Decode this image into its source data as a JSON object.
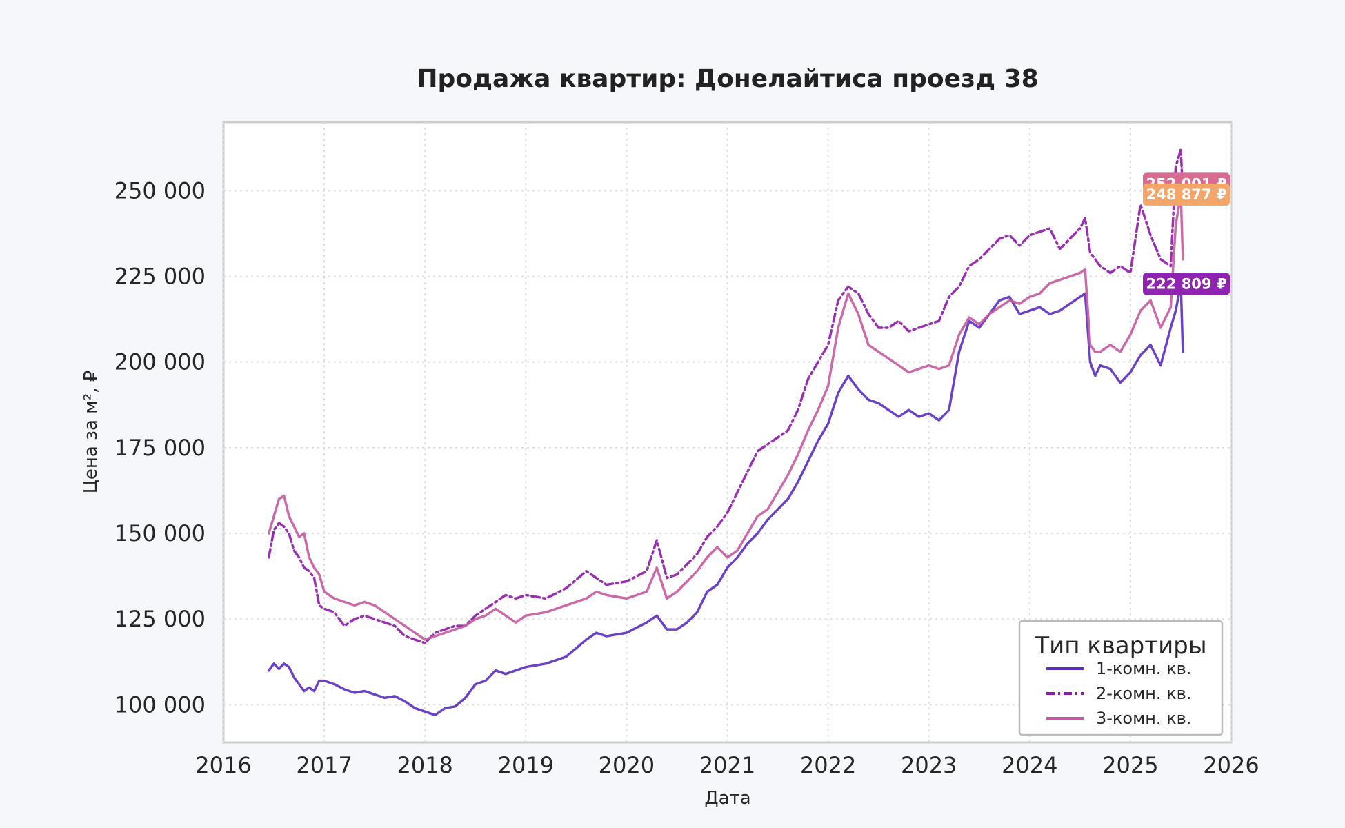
{
  "chart_data": {
    "type": "line",
    "title": "Продажа квартир: Донелайтиса проезд 38",
    "xlabel": "Дата",
    "ylabel": "Цена за м², ₽",
    "xlim": [
      2016.0,
      2026.0
    ],
    "ylim": [
      89000,
      270000
    ],
    "x_ticks": [
      2016,
      2017,
      2018,
      2019,
      2020,
      2021,
      2022,
      2023,
      2024,
      2025,
      2026
    ],
    "x_tick_labels": [
      "2016",
      "2017",
      "2018",
      "2019",
      "2020",
      "2021",
      "2022",
      "2023",
      "2024",
      "2025",
      "2026"
    ],
    "y_ticks": [
      100000,
      125000,
      150000,
      175000,
      200000,
      225000,
      250000
    ],
    "y_tick_labels": [
      "100 000",
      "125 000",
      "150 000",
      "175 000",
      "200 000",
      "225 000",
      "250 000"
    ],
    "grid": true,
    "legend": {
      "title": "Тип квартиры",
      "placement": "lower-right",
      "entries": [
        "1-комн. кв.",
        "2-комн. кв.",
        "3-комн. кв."
      ]
    },
    "series": [
      {
        "name": "1-комн. кв.",
        "color": "#5b2dbf",
        "style": "solid",
        "x": [
          2016.45,
          2016.5,
          2016.55,
          2016.6,
          2016.65,
          2016.7,
          2016.75,
          2016.8,
          2016.85,
          2016.9,
          2016.95,
          2017.0,
          2017.1,
          2017.2,
          2017.3,
          2017.4,
          2017.5,
          2017.6,
          2017.7,
          2017.8,
          2017.9,
          2018.0,
          2018.1,
          2018.2,
          2018.3,
          2018.4,
          2018.5,
          2018.6,
          2018.7,
          2018.8,
          2018.9,
          2019.0,
          2019.2,
          2019.4,
          2019.6,
          2019.7,
          2019.8,
          2020.0,
          2020.2,
          2020.3,
          2020.4,
          2020.5,
          2020.6,
          2020.7,
          2020.8,
          2020.9,
          2021.0,
          2021.1,
          2021.2,
          2021.3,
          2021.4,
          2021.5,
          2021.6,
          2021.7,
          2021.8,
          2021.9,
          2022.0,
          2022.1,
          2022.2,
          2022.3,
          2022.4,
          2022.5,
          2022.6,
          2022.7,
          2022.8,
          2022.9,
          2023.0,
          2023.1,
          2023.2,
          2023.3,
          2023.4,
          2023.5,
          2023.6,
          2023.7,
          2023.8,
          2023.9,
          2024.0,
          2024.1,
          2024.2,
          2024.3,
          2024.4,
          2024.5,
          2024.55,
          2024.6,
          2024.65,
          2024.7,
          2024.8,
          2024.9,
          2025.0,
          2025.1,
          2025.2,
          2025.3,
          2025.4,
          2025.45,
          2025.5,
          2025.52
        ],
        "values": [
          110000,
          112000,
          110500,
          112000,
          111000,
          108000,
          106000,
          104000,
          105000,
          104000,
          107000,
          107000,
          106000,
          104500,
          103500,
          104000,
          103000,
          102000,
          102500,
          101000,
          99000,
          98000,
          97000,
          99000,
          99500,
          102000,
          106000,
          107000,
          110000,
          109000,
          110000,
          111000,
          112000,
          114000,
          119000,
          121000,
          120000,
          121000,
          124000,
          126000,
          122000,
          122000,
          124000,
          127000,
          133000,
          135000,
          140000,
          143000,
          147000,
          150000,
          154000,
          157000,
          160000,
          165000,
          171000,
          177000,
          182000,
          191000,
          196000,
          192000,
          189000,
          188000,
          186000,
          184000,
          186000,
          184000,
          185000,
          183000,
          186000,
          203000,
          212000,
          210000,
          214000,
          218000,
          219000,
          214000,
          215000,
          216000,
          214000,
          215000,
          217000,
          219000,
          220000,
          200000,
          196000,
          199000,
          198000,
          194000,
          197000,
          202000,
          205000,
          199000,
          210000,
          215000,
          222809,
          203000
        ]
      },
      {
        "name": "2-комн. кв.",
        "color": "#8e1aa8",
        "style": "dashdot",
        "x": [
          2016.45,
          2016.5,
          2016.55,
          2016.6,
          2016.65,
          2016.7,
          2016.75,
          2016.8,
          2016.85,
          2016.9,
          2016.95,
          2017.0,
          2017.1,
          2017.2,
          2017.3,
          2017.4,
          2017.5,
          2017.6,
          2017.7,
          2017.8,
          2017.9,
          2018.0,
          2018.1,
          2018.2,
          2018.3,
          2018.4,
          2018.5,
          2018.6,
          2018.7,
          2018.8,
          2018.9,
          2019.0,
          2019.2,
          2019.4,
          2019.6,
          2019.7,
          2019.8,
          2020.0,
          2020.2,
          2020.3,
          2020.4,
          2020.5,
          2020.6,
          2020.7,
          2020.8,
          2020.9,
          2021.0,
          2021.1,
          2021.2,
          2021.3,
          2021.4,
          2021.5,
          2021.6,
          2021.7,
          2021.8,
          2021.9,
          2022.0,
          2022.1,
          2022.2,
          2022.3,
          2022.4,
          2022.5,
          2022.6,
          2022.7,
          2022.8,
          2022.9,
          2023.0,
          2023.1,
          2023.2,
          2023.3,
          2023.4,
          2023.5,
          2023.6,
          2023.7,
          2023.8,
          2023.9,
          2024.0,
          2024.1,
          2024.2,
          2024.3,
          2024.4,
          2024.5,
          2024.55,
          2024.6,
          2024.65,
          2024.7,
          2024.8,
          2024.9,
          2025.0,
          2025.1,
          2025.2,
          2025.3,
          2025.4,
          2025.45,
          2025.5,
          2025.52
        ],
        "values": [
          143000,
          151000,
          153000,
          152000,
          150000,
          145000,
          143000,
          140000,
          139000,
          137000,
          129000,
          128000,
          127000,
          123000,
          125000,
          126000,
          125000,
          124000,
          123000,
          120000,
          119000,
          118000,
          121000,
          122000,
          123000,
          123000,
          126000,
          128000,
          130000,
          132000,
          131000,
          132000,
          131000,
          134000,
          139000,
          137000,
          135000,
          136000,
          139000,
          148000,
          137000,
          138000,
          141000,
          144000,
          149000,
          152000,
          156000,
          162000,
          168000,
          174000,
          176000,
          178000,
          180000,
          186000,
          195000,
          200000,
          205000,
          218000,
          222000,
          220000,
          214000,
          210000,
          210000,
          212000,
          209000,
          210000,
          211000,
          212000,
          219000,
          222000,
          228000,
          230000,
          233000,
          236000,
          237000,
          234000,
          237000,
          238000,
          239000,
          233000,
          236000,
          239000,
          242000,
          232000,
          230000,
          228000,
          226000,
          228000,
          226000,
          246000,
          237000,
          230000,
          228000,
          257000,
          262000,
          249000
        ]
      },
      {
        "name": "3-комн. кв.",
        "color": "#c45aa0",
        "style": "solid",
        "x": [
          2016.45,
          2016.5,
          2016.55,
          2016.6,
          2016.65,
          2016.7,
          2016.75,
          2016.8,
          2016.85,
          2016.9,
          2016.95,
          2017.0,
          2017.1,
          2017.2,
          2017.3,
          2017.4,
          2017.5,
          2017.6,
          2017.7,
          2017.8,
          2017.9,
          2018.0,
          2018.1,
          2018.2,
          2018.3,
          2018.4,
          2018.5,
          2018.6,
          2018.7,
          2018.8,
          2018.9,
          2019.0,
          2019.2,
          2019.4,
          2019.6,
          2019.7,
          2019.8,
          2020.0,
          2020.2,
          2020.3,
          2020.4,
          2020.5,
          2020.6,
          2020.7,
          2020.8,
          2020.9,
          2021.0,
          2021.1,
          2021.2,
          2021.3,
          2021.4,
          2021.5,
          2021.6,
          2021.7,
          2021.8,
          2021.9,
          2022.0,
          2022.1,
          2022.2,
          2022.3,
          2022.4,
          2022.5,
          2022.6,
          2022.7,
          2022.8,
          2022.9,
          2023.0,
          2023.1,
          2023.2,
          2023.3,
          2023.4,
          2023.5,
          2023.6,
          2023.7,
          2023.8,
          2023.9,
          2024.0,
          2024.1,
          2024.2,
          2024.3,
          2024.4,
          2024.5,
          2024.55,
          2024.6,
          2024.65,
          2024.7,
          2024.8,
          2024.9,
          2025.0,
          2025.1,
          2025.2,
          2025.3,
          2025.4,
          2025.45,
          2025.5,
          2025.52
        ],
        "values": [
          150000,
          155000,
          160000,
          161000,
          155000,
          152000,
          149000,
          150000,
          143000,
          140000,
          138000,
          133000,
          131000,
          130000,
          129000,
          130000,
          129000,
          127000,
          125000,
          123000,
          121000,
          119000,
          120000,
          121000,
          122000,
          123000,
          125000,
          126000,
          128000,
          126000,
          124000,
          126000,
          127000,
          129000,
          131000,
          133000,
          132000,
          131000,
          133000,
          140000,
          131000,
          133000,
          136000,
          139000,
          143000,
          146000,
          143000,
          145000,
          150000,
          155000,
          157000,
          162000,
          167000,
          173000,
          180000,
          186000,
          193000,
          210000,
          220000,
          214000,
          205000,
          203000,
          201000,
          199000,
          197000,
          198000,
          199000,
          198000,
          199000,
          208000,
          213000,
          211000,
          214000,
          216000,
          218000,
          217000,
          219000,
          220000,
          223000,
          224000,
          225000,
          226000,
          227000,
          205000,
          203000,
          203000,
          205000,
          203000,
          208000,
          215000,
          218000,
          210000,
          216000,
          240000,
          248877,
          230000
        ]
      }
    ],
    "end_labels": [
      {
        "text": "252 001 ₽",
        "value": 252001,
        "color": "#d96a92"
      },
      {
        "text": "248 877 ₽",
        "value": 248877,
        "color": "#f4a56a"
      },
      {
        "text": "222 809 ₽",
        "value": 222809,
        "color": "#8e24b0"
      }
    ]
  }
}
